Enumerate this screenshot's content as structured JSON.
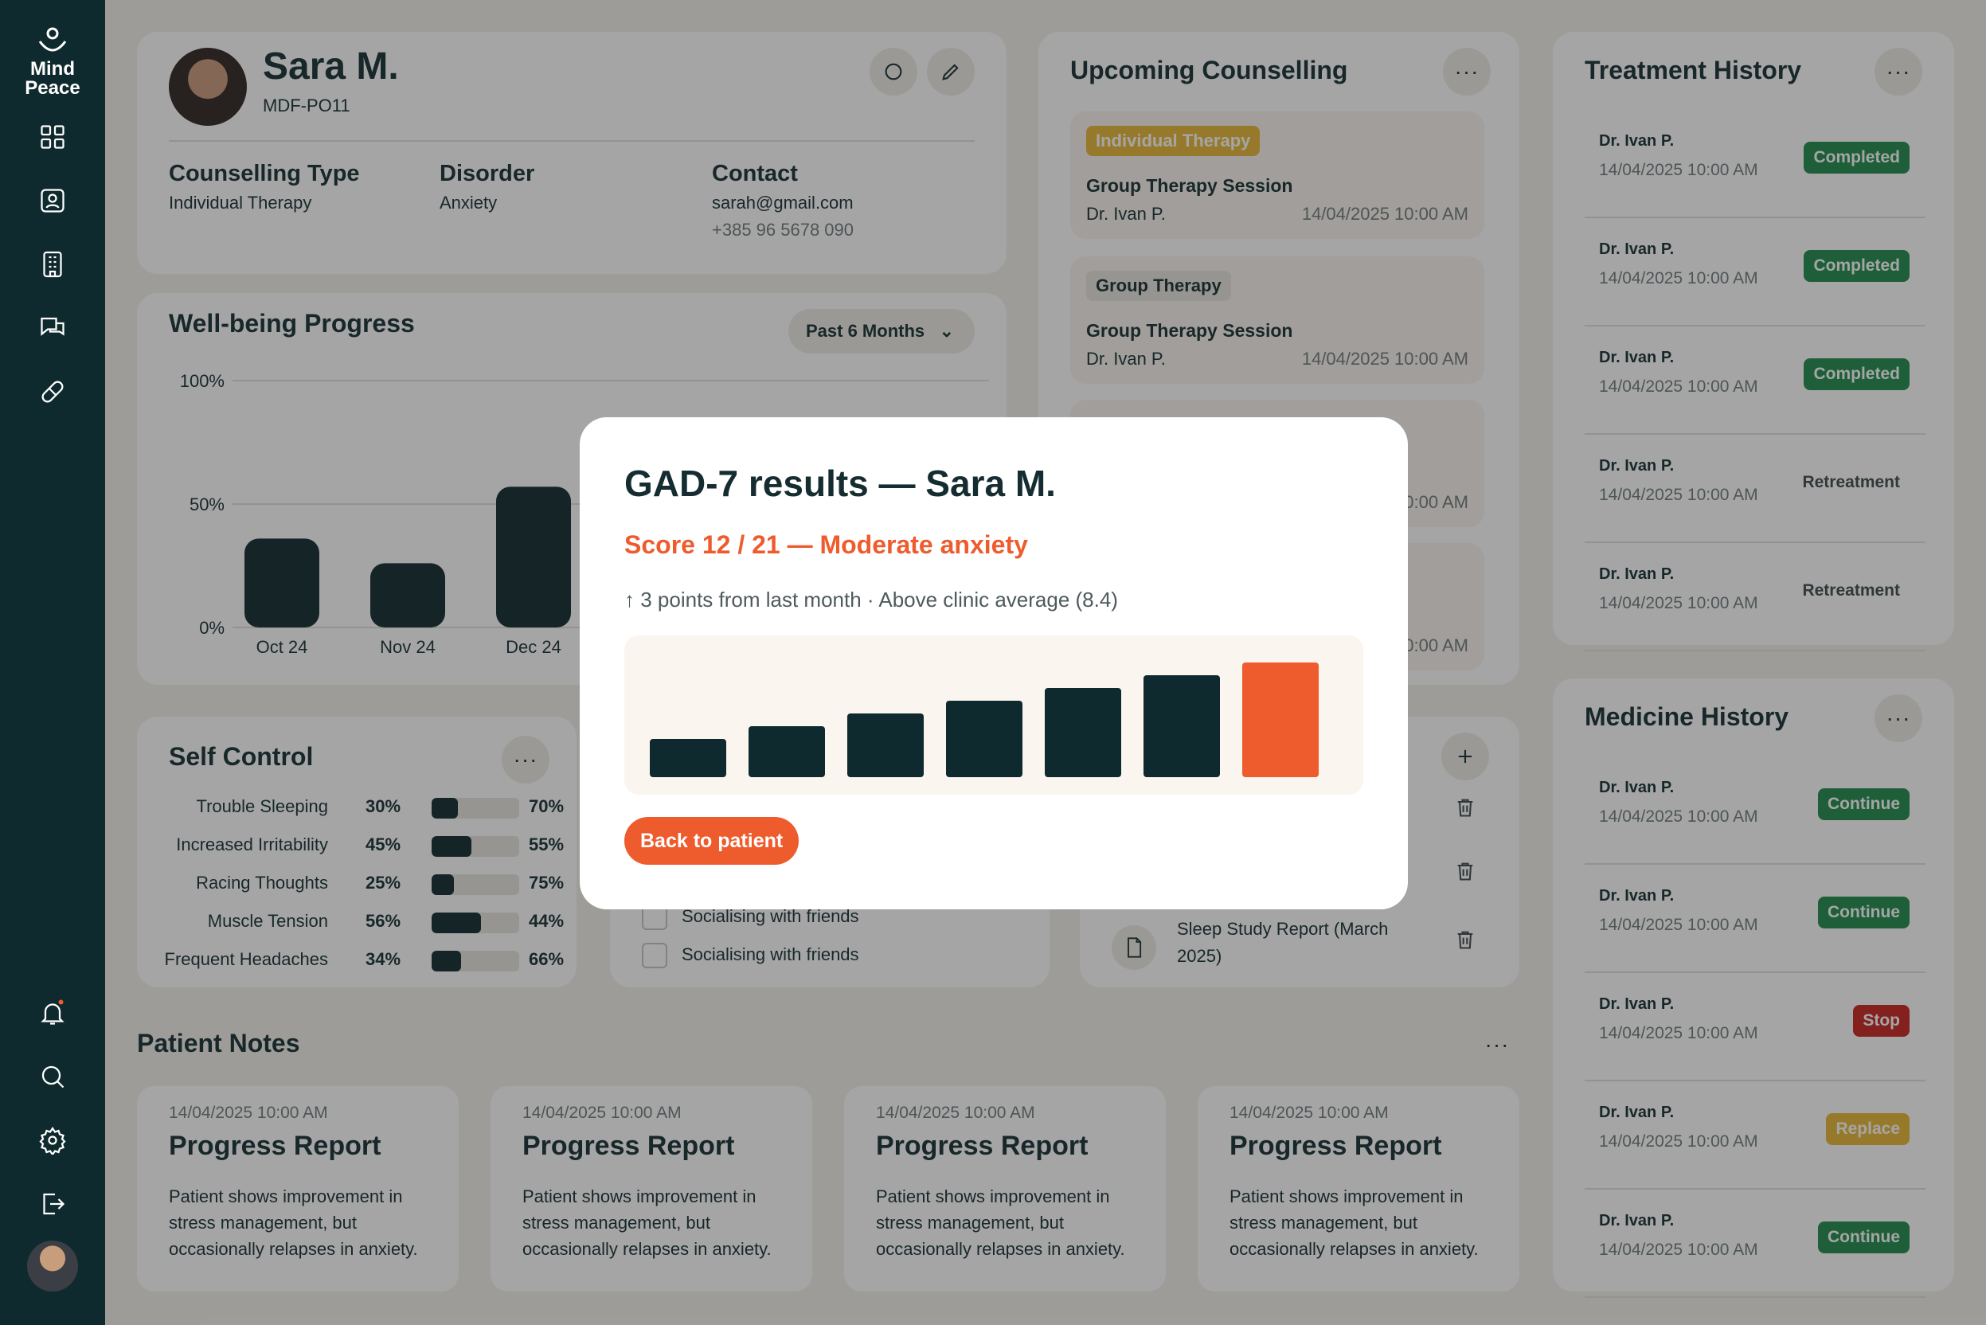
{
  "app": {
    "logo_line1": "Mind",
    "logo_line2": "Peace"
  },
  "profile": {
    "name": "Sara M.",
    "patient_id": "MDF-PO11",
    "counselling_type_label": "Counselling Type",
    "counselling_type": "Individual Therapy",
    "disorder_label": "Disorder",
    "disorder": "Anxiety",
    "contact_label": "Contact",
    "email": "sarah@gmail.com",
    "phone": "+385 96 5678 090"
  },
  "wellbeing": {
    "title": "Well-being Progress",
    "filter": "Past 6 Months",
    "chart_data": {
      "type": "bar",
      "categories": [
        "Oct 24",
        "Nov 24",
        "Dec 24"
      ],
      "values": [
        36,
        26,
        57
      ],
      "yticks": [
        "100%",
        "50%",
        "0%"
      ],
      "ylim": [
        0,
        100
      ]
    }
  },
  "self_control": {
    "title": "Self Control",
    "items": [
      {
        "label": "Trouble Sleeping",
        "left": "30%",
        "right": "70%",
        "value": 30
      },
      {
        "label": "Increased Irritability",
        "left": "45%",
        "right": "55%",
        "value": 45
      },
      {
        "label": "Racing Thoughts",
        "left": "25%",
        "right": "75%",
        "value": 25
      },
      {
        "label": "Muscle Tension",
        "left": "56%",
        "right": "44%",
        "value": 56
      },
      {
        "label": "Frequent Headaches",
        "left": "34%",
        "right": "66%",
        "value": 34
      }
    ]
  },
  "tasks": {
    "items": [
      "Socialising with friends",
      "Socialising with friends"
    ]
  },
  "documents": {
    "items": [
      "Sleep Study Report (March 2025)"
    ]
  },
  "upcoming": {
    "title": "Upcoming Counselling",
    "sessions": [
      {
        "tag": "Individual Therapy",
        "title": "Group Therapy Session",
        "doctor": "Dr. Ivan P.",
        "time": "14/04/2025 10:00 AM"
      },
      {
        "tag": "Group Therapy",
        "title": "Group Therapy Session",
        "doctor": "Dr. Ivan P.",
        "time": "14/04/2025 10:00 AM"
      },
      {
        "time_partial": "0:00 AM"
      },
      {
        "time_partial": "0:00 AM"
      }
    ]
  },
  "treatment": {
    "title": "Treatment History",
    "items": [
      {
        "doctor": "Dr. Ivan P.",
        "time": "14/04/2025 10:00 AM",
        "status": "Completed"
      },
      {
        "doctor": "Dr. Ivan P.",
        "time": "14/04/2025 10:00 AM",
        "status": "Completed"
      },
      {
        "doctor": "Dr. Ivan P.",
        "time": "14/04/2025 10:00 AM",
        "status": "Completed"
      },
      {
        "doctor": "Dr. Ivan P.",
        "time": "14/04/2025 10:00 AM",
        "status": "Retreatment"
      },
      {
        "doctor": "Dr. Ivan P.",
        "time": "14/04/2025 10:00 AM",
        "status": "Retreatment"
      }
    ]
  },
  "medicine": {
    "title": "Medicine History",
    "items": [
      {
        "doctor": "Dr. Ivan P.",
        "time": "14/04/2025 10:00 AM",
        "status": "Continue"
      },
      {
        "doctor": "Dr. Ivan P.",
        "time": "14/04/2025 10:00 AM",
        "status": "Continue"
      },
      {
        "doctor": "Dr. Ivan P.",
        "time": "14/04/2025 10:00 AM",
        "status": "Stop"
      },
      {
        "doctor": "Dr. Ivan P.",
        "time": "14/04/2025 10:00 AM",
        "status": "Replace"
      },
      {
        "doctor": "Dr. Ivan P.",
        "time": "14/04/2025 10:00 AM",
        "status": "Continue"
      }
    ]
  },
  "notes": {
    "title": "Patient Notes",
    "items": [
      {
        "time": "14/04/2025 10:00 AM",
        "title": "Progress Report",
        "body": "Patient shows improvement in stress management, but occasionally relapses in anxiety."
      },
      {
        "time": "14/04/2025 10:00 AM",
        "title": "Progress Report",
        "body": "Patient shows improvement in stress management, but occasionally relapses in anxiety."
      },
      {
        "time": "14/04/2025 10:00 AM",
        "title": "Progress Report",
        "body": "Patient shows improvement in stress management, but occasionally relapses in anxiety."
      },
      {
        "time": "14/04/2025 10:00 AM",
        "title": "Progress Report",
        "body": "Patient shows improvement in stress management, but occasionally relapses in anxiety."
      }
    ]
  },
  "modal": {
    "title": "GAD-7 results — Sara M.",
    "score": "Score 12 / 21 — Moderate anxiety",
    "delta": "3 points from last month · Above clinic average (8.4)",
    "button": "Back to patient",
    "chart_data": {
      "type": "bar",
      "values": [
        6,
        8,
        10,
        12,
        14,
        16,
        18
      ],
      "highlight_last": true,
      "colors": {
        "bar": "#0f2a2e",
        "highlight": "#ee5b2d"
      }
    }
  },
  "colors": {
    "accent": "#ee5b2d",
    "dark": "#0f2a2e",
    "green": "#1f8a4c",
    "red": "#c8241e",
    "yellow": "#e8b634"
  }
}
